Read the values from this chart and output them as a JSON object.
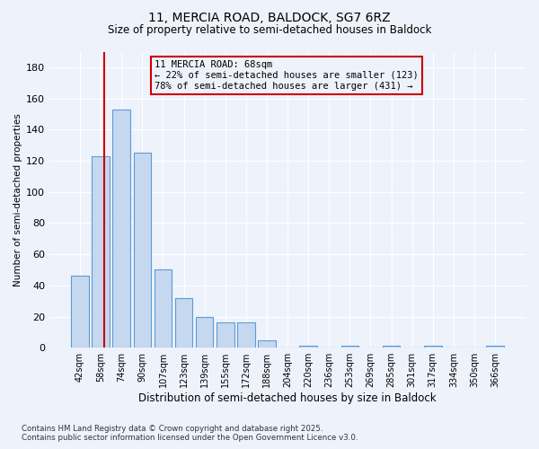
{
  "title_line1": "11, MERCIA ROAD, BALDOCK, SG7 6RZ",
  "title_line2": "Size of property relative to semi-detached houses in Baldock",
  "xlabel": "Distribution of semi-detached houses by size in Baldock",
  "ylabel": "Number of semi-detached properties",
  "bins": [
    "42sqm",
    "58sqm",
    "74sqm",
    "90sqm",
    "107sqm",
    "123sqm",
    "139sqm",
    "155sqm",
    "172sqm",
    "188sqm",
    "204sqm",
    "220sqm",
    "236sqm",
    "253sqm",
    "269sqm",
    "285sqm",
    "301sqm",
    "317sqm",
    "334sqm",
    "350sqm",
    "366sqm"
  ],
  "values": [
    46,
    123,
    153,
    125,
    50,
    32,
    20,
    16,
    16,
    5,
    0,
    1,
    0,
    1,
    0,
    1,
    0,
    1,
    0,
    0,
    1
  ],
  "bar_color": "#c5d8f0",
  "bar_edge_color": "#5b9bd5",
  "vline_x": 1.18,
  "annotation_text_line1": "11 MERCIA ROAD: 68sqm",
  "annotation_text_line2": "← 22% of semi-detached houses are smaller (123)",
  "annotation_text_line3": "78% of semi-detached houses are larger (431) →",
  "vline_color": "#cc0000",
  "annotation_box_edge_color": "#cc0000",
  "ylim": [
    0,
    190
  ],
  "yticks": [
    0,
    20,
    40,
    60,
    80,
    100,
    120,
    140,
    160,
    180
  ],
  "background_color": "#eef2fb",
  "footer_line1": "Contains HM Land Registry data © Crown copyright and database right 2025.",
  "footer_line2": "Contains public sector information licensed under the Open Government Licence v3.0.",
  "grid_color": "#ffffff"
}
